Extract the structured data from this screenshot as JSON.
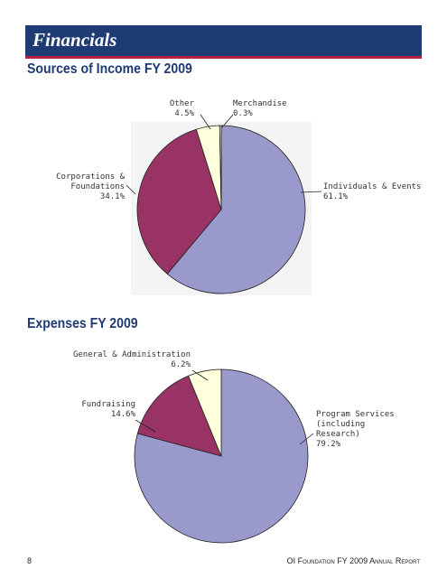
{
  "header": {
    "title": "Financials"
  },
  "chart_data": [
    {
      "type": "pie",
      "title": "Sources of Income FY 2009",
      "categories": [
        "Individuals & Events",
        "Corporations & Foundations",
        "Other",
        "Merchandise"
      ],
      "values": [
        61.1,
        34.1,
        4.5,
        0.3
      ],
      "value_labels": [
        "61.1%",
        "34.1%",
        "4.5%",
        "0.3%"
      ],
      "colors": [
        "#9999cc",
        "#993366",
        "#ffffdd",
        "#ffffdd"
      ]
    },
    {
      "type": "pie",
      "title": "Expenses FY 2009",
      "categories": [
        "Program Services (including Research)",
        "Fundraising",
        "General & Administration"
      ],
      "values": [
        79.2,
        14.6,
        6.2
      ],
      "value_labels": [
        "79.2%",
        "14.6%",
        "6.2%"
      ],
      "colors": [
        "#9999cc",
        "#993366",
        "#ffffdd"
      ]
    }
  ],
  "footer": {
    "page": "8",
    "report": "OI Foundation FY 2009 Annual Report"
  }
}
